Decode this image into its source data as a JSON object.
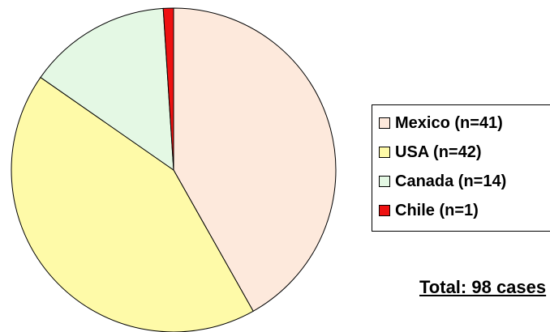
{
  "chart_data": {
    "type": "pie",
    "title": "",
    "categories": [
      "Mexico",
      "USA",
      "Canada",
      "Chile"
    ],
    "values": [
      41,
      42,
      14,
      1
    ],
    "colors": [
      "#fde9dc",
      "#fefaa8",
      "#e4f8e4",
      "#ee1111"
    ],
    "legend": [
      "Mexico (n=41)",
      "USA (n=42)",
      "Canada (n=14)",
      "Chile (n=1)"
    ],
    "legend_position": "right",
    "start_angle": "12 o'clock, clockwise",
    "annotation": "Total: 98 cases"
  }
}
